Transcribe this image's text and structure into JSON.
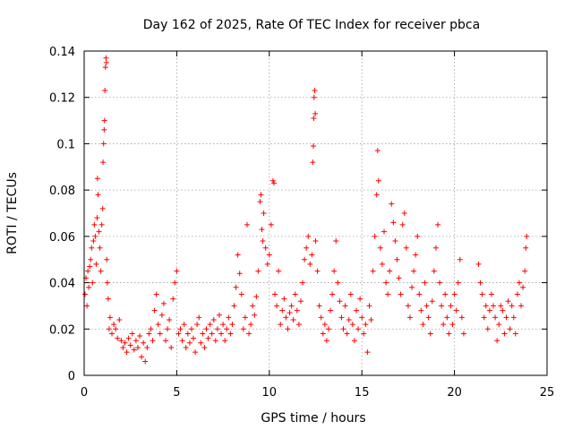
{
  "chart_data": {
    "type": "scatter",
    "title": "Day 162 of 2025, Rate Of TEC Index for receiver pbca",
    "xlabel": "GPS time / hours",
    "ylabel": "ROTI / TECUs",
    "xlim": [
      0,
      25
    ],
    "ylim": [
      0,
      0.14
    ],
    "x_ticks": [
      0,
      5,
      10,
      15,
      20,
      25
    ],
    "x_tick_labels": [
      "0",
      "5",
      "10",
      "15",
      "20",
      "25"
    ],
    "y_ticks": [
      0,
      0.02,
      0.04,
      0.06,
      0.08,
      0.1,
      0.12,
      0.14
    ],
    "y_tick_labels": [
      "0",
      "0.02",
      "0.04",
      "0.06",
      "0.08",
      "0.1",
      "0.12",
      "0.14"
    ],
    "grid": true,
    "marker": "+",
    "color": "#ff0000",
    "series": [
      {
        "points": [
          [
            0.05,
            0.035
          ],
          [
            0.1,
            0.042
          ],
          [
            0.15,
            0.03
          ],
          [
            0.2,
            0.045
          ],
          [
            0.25,
            0.038
          ],
          [
            0.3,
            0.047
          ],
          [
            0.35,
            0.05
          ],
          [
            0.4,
            0.055
          ],
          [
            0.45,
            0.04
          ],
          [
            0.5,
            0.058
          ],
          [
            0.55,
            0.065
          ],
          [
            0.6,
            0.06
          ],
          [
            0.65,
            0.048
          ],
          [
            0.7,
            0.068
          ],
          [
            0.72,
            0.085
          ],
          [
            0.75,
            0.078
          ],
          [
            0.8,
            0.062
          ],
          [
            0.85,
            0.055
          ],
          [
            0.9,
            0.045
          ],
          [
            0.95,
            0.065
          ],
          [
            1.0,
            0.072
          ],
          [
            1.02,
            0.092
          ],
          [
            1.05,
            0.1
          ],
          [
            1.08,
            0.106
          ],
          [
            1.1,
            0.11
          ],
          [
            1.12,
            0.123
          ],
          [
            1.15,
            0.133
          ],
          [
            1.18,
            0.137
          ],
          [
            1.2,
            0.135
          ],
          [
            1.22,
            0.05
          ],
          [
            1.25,
            0.04
          ],
          [
            1.3,
            0.033
          ],
          [
            1.35,
            0.02
          ],
          [
            1.4,
            0.025
          ],
          [
            1.5,
            0.018
          ],
          [
            1.6,
            0.022
          ],
          [
            1.7,
            0.02
          ],
          [
            1.8,
            0.016
          ],
          [
            1.9,
            0.024
          ],
          [
            2.0,
            0.015
          ],
          [
            2.1,
            0.012
          ],
          [
            2.2,
            0.014
          ],
          [
            2.3,
            0.01
          ],
          [
            2.4,
            0.016
          ],
          [
            2.5,
            0.013
          ],
          [
            2.6,
            0.018
          ],
          [
            2.7,
            0.011
          ],
          [
            2.8,
            0.015
          ],
          [
            2.9,
            0.012
          ],
          [
            3.0,
            0.017
          ],
          [
            3.1,
            0.008
          ],
          [
            3.2,
            0.014
          ],
          [
            3.3,
            0.006
          ],
          [
            3.4,
            0.012
          ],
          [
            3.5,
            0.018
          ],
          [
            3.6,
            0.02
          ],
          [
            3.7,
            0.015
          ],
          [
            3.8,
            0.028
          ],
          [
            3.9,
            0.035
          ],
          [
            4.0,
            0.022
          ],
          [
            4.1,
            0.018
          ],
          [
            4.2,
            0.026
          ],
          [
            4.3,
            0.031
          ],
          [
            4.4,
            0.015
          ],
          [
            4.5,
            0.02
          ],
          [
            4.6,
            0.024
          ],
          [
            4.7,
            0.012
          ],
          [
            4.8,
            0.033
          ],
          [
            4.9,
            0.04
          ],
          [
            5.0,
            0.045
          ],
          [
            5.1,
            0.018
          ],
          [
            5.2,
            0.02
          ],
          [
            5.3,
            0.015
          ],
          [
            5.4,
            0.022
          ],
          [
            5.5,
            0.012
          ],
          [
            5.6,
            0.018
          ],
          [
            5.7,
            0.014
          ],
          [
            5.8,
            0.02
          ],
          [
            5.9,
            0.016
          ],
          [
            6.0,
            0.01
          ],
          [
            6.1,
            0.022
          ],
          [
            6.2,
            0.025
          ],
          [
            6.3,
            0.014
          ],
          [
            6.4,
            0.018
          ],
          [
            6.5,
            0.012
          ],
          [
            6.6,
            0.02
          ],
          [
            6.7,
            0.016
          ],
          [
            6.8,
            0.022
          ],
          [
            6.9,
            0.018
          ],
          [
            7.0,
            0.024
          ],
          [
            7.1,
            0.015
          ],
          [
            7.2,
            0.02
          ],
          [
            7.3,
            0.026
          ],
          [
            7.4,
            0.018
          ],
          [
            7.5,
            0.022
          ],
          [
            7.6,
            0.015
          ],
          [
            7.7,
            0.02
          ],
          [
            7.8,
            0.025
          ],
          [
            7.9,
            0.018
          ],
          [
            8.0,
            0.022
          ],
          [
            8.1,
            0.03
          ],
          [
            8.2,
            0.038
          ],
          [
            8.3,
            0.052
          ],
          [
            8.4,
            0.044
          ],
          [
            8.5,
            0.035
          ],
          [
            8.6,
            0.02
          ],
          [
            8.7,
            0.025
          ],
          [
            8.8,
            0.065
          ],
          [
            8.9,
            0.018
          ],
          [
            9.0,
            0.022
          ],
          [
            9.1,
            0.03
          ],
          [
            9.2,
            0.026
          ],
          [
            9.3,
            0.034
          ],
          [
            9.4,
            0.045
          ],
          [
            9.5,
            0.075
          ],
          [
            9.55,
            0.078
          ],
          [
            9.6,
            0.063
          ],
          [
            9.65,
            0.058
          ],
          [
            9.7,
            0.07
          ],
          [
            9.8,
            0.055
          ],
          [
            9.9,
            0.048
          ],
          [
            10.0,
            0.052
          ],
          [
            10.1,
            0.065
          ],
          [
            10.2,
            0.084
          ],
          [
            10.25,
            0.083
          ],
          [
            10.3,
            0.035
          ],
          [
            10.4,
            0.03
          ],
          [
            10.5,
            0.045
          ],
          [
            10.6,
            0.022
          ],
          [
            10.7,
            0.028
          ],
          [
            10.8,
            0.033
          ],
          [
            10.9,
            0.025
          ],
          [
            11.0,
            0.02
          ],
          [
            11.1,
            0.027
          ],
          [
            11.2,
            0.03
          ],
          [
            11.3,
            0.024
          ],
          [
            11.4,
            0.035
          ],
          [
            11.5,
            0.028
          ],
          [
            11.6,
            0.022
          ],
          [
            11.7,
            0.032
          ],
          [
            11.8,
            0.04
          ],
          [
            11.9,
            0.05
          ],
          [
            12.0,
            0.055
          ],
          [
            12.1,
            0.06
          ],
          [
            12.2,
            0.048
          ],
          [
            12.3,
            0.052
          ],
          [
            12.35,
            0.092
          ],
          [
            12.38,
            0.099
          ],
          [
            12.4,
            0.111
          ],
          [
            12.42,
            0.12
          ],
          [
            12.45,
            0.123
          ],
          [
            12.48,
            0.113
          ],
          [
            12.5,
            0.058
          ],
          [
            12.6,
            0.045
          ],
          [
            12.7,
            0.03
          ],
          [
            12.8,
            0.025
          ],
          [
            12.9,
            0.018
          ],
          [
            13.0,
            0.022
          ],
          [
            13.1,
            0.015
          ],
          [
            13.2,
            0.02
          ],
          [
            13.3,
            0.028
          ],
          [
            13.4,
            0.035
          ],
          [
            13.5,
            0.045
          ],
          [
            13.6,
            0.058
          ],
          [
            13.7,
            0.04
          ],
          [
            13.8,
            0.032
          ],
          [
            13.9,
            0.025
          ],
          [
            14.0,
            0.02
          ],
          [
            14.1,
            0.03
          ],
          [
            14.2,
            0.018
          ],
          [
            14.3,
            0.024
          ],
          [
            14.4,
            0.035
          ],
          [
            14.5,
            0.022
          ],
          [
            14.6,
            0.015
          ],
          [
            14.7,
            0.028
          ],
          [
            14.8,
            0.02
          ],
          [
            14.9,
            0.033
          ],
          [
            15.0,
            0.025
          ],
          [
            15.1,
            0.018
          ],
          [
            15.2,
            0.022
          ],
          [
            15.3,
            0.01
          ],
          [
            15.4,
            0.03
          ],
          [
            15.5,
            0.024
          ],
          [
            15.6,
            0.045
          ],
          [
            15.7,
            0.06
          ],
          [
            15.8,
            0.078
          ],
          [
            15.85,
            0.097
          ],
          [
            15.9,
            0.084
          ],
          [
            16.0,
            0.055
          ],
          [
            16.1,
            0.048
          ],
          [
            16.2,
            0.062
          ],
          [
            16.3,
            0.04
          ],
          [
            16.4,
            0.035
          ],
          [
            16.5,
            0.045
          ],
          [
            16.6,
            0.074
          ],
          [
            16.7,
            0.066
          ],
          [
            16.8,
            0.058
          ],
          [
            16.9,
            0.05
          ],
          [
            17.0,
            0.042
          ],
          [
            17.1,
            0.035
          ],
          [
            17.2,
            0.065
          ],
          [
            17.3,
            0.07
          ],
          [
            17.4,
            0.055
          ],
          [
            17.5,
            0.03
          ],
          [
            17.6,
            0.025
          ],
          [
            17.7,
            0.038
          ],
          [
            17.8,
            0.045
          ],
          [
            17.9,
            0.052
          ],
          [
            18.0,
            0.06
          ],
          [
            18.1,
            0.035
          ],
          [
            18.2,
            0.028
          ],
          [
            18.3,
            0.022
          ],
          [
            18.4,
            0.04
          ],
          [
            18.5,
            0.03
          ],
          [
            18.6,
            0.025
          ],
          [
            18.7,
            0.018
          ],
          [
            18.8,
            0.032
          ],
          [
            18.9,
            0.045
          ],
          [
            19.0,
            0.055
          ],
          [
            19.1,
            0.065
          ],
          [
            19.2,
            0.04
          ],
          [
            19.3,
            0.03
          ],
          [
            19.4,
            0.022
          ],
          [
            19.5,
            0.035
          ],
          [
            19.6,
            0.025
          ],
          [
            19.7,
            0.018
          ],
          [
            19.8,
            0.03
          ],
          [
            19.9,
            0.022
          ],
          [
            20.0,
            0.035
          ],
          [
            20.1,
            0.028
          ],
          [
            20.2,
            0.04
          ],
          [
            20.3,
            0.05
          ],
          [
            20.4,
            0.025
          ],
          [
            20.5,
            0.018
          ],
          [
            21.3,
            0.048
          ],
          [
            21.4,
            0.04
          ],
          [
            21.5,
            0.035
          ],
          [
            21.6,
            0.025
          ],
          [
            21.7,
            0.03
          ],
          [
            21.8,
            0.02
          ],
          [
            21.9,
            0.028
          ],
          [
            22.0,
            0.035
          ],
          [
            22.1,
            0.03
          ],
          [
            22.2,
            0.025
          ],
          [
            22.3,
            0.015
          ],
          [
            22.4,
            0.022
          ],
          [
            22.5,
            0.03
          ],
          [
            22.6,
            0.028
          ],
          [
            22.7,
            0.018
          ],
          [
            22.8,
            0.025
          ],
          [
            22.9,
            0.032
          ],
          [
            23.0,
            0.02
          ],
          [
            23.1,
            0.03
          ],
          [
            23.2,
            0.025
          ],
          [
            23.3,
            0.018
          ],
          [
            23.4,
            0.035
          ],
          [
            23.5,
            0.04
          ],
          [
            23.6,
            0.03
          ],
          [
            23.7,
            0.038
          ],
          [
            23.8,
            0.045
          ],
          [
            23.85,
            0.055
          ],
          [
            23.9,
            0.06
          ]
        ]
      }
    ]
  }
}
